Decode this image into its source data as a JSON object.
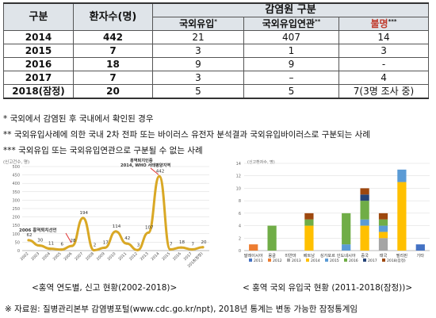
{
  "table": {
    "headers": {
      "year": "구분",
      "patients": "환자수(명)",
      "source_group": "감염원 구분",
      "imported": "국외유입",
      "imported_mark": "*",
      "related": "국외유입연관",
      "related_mark": "**",
      "unknown": "불명",
      "unknown_mark": "***"
    },
    "rows": [
      {
        "year": "2014",
        "total": "442",
        "imported": "21",
        "related": "407",
        "unknown": "14"
      },
      {
        "year": "2015",
        "total": "7",
        "imported": "3",
        "related": "1",
        "unknown": "3"
      },
      {
        "year": "2016",
        "total": "18",
        "imported": "9",
        "related": "9",
        "unknown": "-"
      },
      {
        "year": "2017",
        "total": "7",
        "imported": "3",
        "related": "–",
        "unknown": "4"
      },
      {
        "year": "2018(잠정)",
        "total": "20",
        "imported": "5",
        "related": "5",
        "unknown": "7(3명 조사 중)"
      }
    ]
  },
  "notes": [
    "* 국외에서 감염된 후 국내에서 확인된 경우",
    "** 국외유입사례에 의한 국내 2차 전파 또는 바이러스 유전자 분석결과 국외유입바이러스로 구분되는 사례",
    "*** 국외유입 또는 국외유입연관으로 구분될 수 없는 사례"
  ],
  "colors": {
    "line": "#d9a825",
    "annotation": "#e03030",
    "grid": "#d8d8d8",
    "header_bg": "#dfe4e9"
  },
  "chart_data": [
    {
      "type": "line",
      "ylabel": "(신고건수, 명)",
      "x": [
        "2002",
        "2003",
        "2004",
        "2005",
        "2006",
        "2007",
        "2008",
        "2009",
        "2010",
        "2011",
        "2012",
        "2013",
        "2014",
        "2015",
        "2016",
        "2017",
        "2018(잠정)"
      ],
      "values": [
        62,
        30,
        11,
        6,
        28,
        194,
        2,
        17,
        114,
        42,
        3,
        107,
        442,
        7,
        18,
        7,
        20
      ],
      "data_labels": [
        "62",
        "30",
        "11",
        "6",
        "28",
        "194",
        "2",
        "17",
        "114",
        "42",
        "3",
        "107",
        "442",
        "7",
        "18",
        "7",
        "20"
      ],
      "ylim": [
        0,
        500
      ],
      "yticks": [
        0,
        50,
        100,
        150,
        200,
        250,
        300,
        350,
        400,
        450,
        500
      ],
      "annotations": [
        {
          "text": "2006 홍역퇴치선언",
          "at": "2006"
        },
        {
          "text_line1": "홍역퇴치인증",
          "text_line2": "2014, WHO 서태평양지역",
          "at": "2014"
        }
      ],
      "caption": "<홍역 연도별, 신고 현황(2002-2018)>"
    },
    {
      "type": "bar",
      "stacked": true,
      "ylabel": "(신고환자수, 명)",
      "ylim": [
        0,
        14
      ],
      "yticks": [
        0,
        2,
        4,
        6,
        8,
        10,
        12,
        14
      ],
      "categories": [
        "말레이시아",
        "몽골",
        "미얀마",
        "베트남",
        "싱가포르",
        "인도네시아",
        "중국",
        "태국",
        "필리핀",
        "기타"
      ],
      "series": [
        {
          "name": "2011",
          "color": "#4472c4",
          "values": [
            0,
            0,
            0,
            0,
            0,
            0,
            0,
            0,
            0,
            1
          ]
        },
        {
          "name": "2012",
          "color": "#ed7d31",
          "values": [
            1,
            0,
            0,
            0,
            0,
            0,
            0,
            0,
            0,
            0
          ]
        },
        {
          "name": "2013",
          "color": "#a5a5a5",
          "values": [
            0,
            0,
            0,
            0,
            0,
            0,
            0,
            2,
            0,
            0
          ]
        },
        {
          "name": "2014",
          "color": "#ffc000",
          "values": [
            0,
            0,
            0,
            4,
            0,
            0,
            4,
            1,
            11,
            0
          ]
        },
        {
          "name": "2015",
          "color": "#5b9bd5",
          "values": [
            0,
            0,
            0,
            0,
            0,
            1,
            1,
            1,
            2,
            0
          ]
        },
        {
          "name": "2016",
          "color": "#70ad47",
          "values": [
            0,
            4,
            0,
            1,
            0,
            5,
            3,
            1,
            0,
            0
          ]
        },
        {
          "name": "2017",
          "color": "#264478",
          "values": [
            0,
            0,
            0,
            0,
            0,
            0,
            1,
            0,
            0,
            0
          ]
        },
        {
          "name": "2018(잠정)",
          "color": "#9e480e",
          "values": [
            0,
            0,
            0,
            1,
            0,
            0,
            1,
            1,
            0,
            0
          ]
        }
      ],
      "caption": "< 홍역 국외 유입국 현황 (2011-2018(잠정))>"
    }
  ],
  "source": "※ 자료원: 질병관리본부 감염병포털(www.cdc.go.kr/npt), 2018년 통계는 변동 가능한 잠정통계임"
}
